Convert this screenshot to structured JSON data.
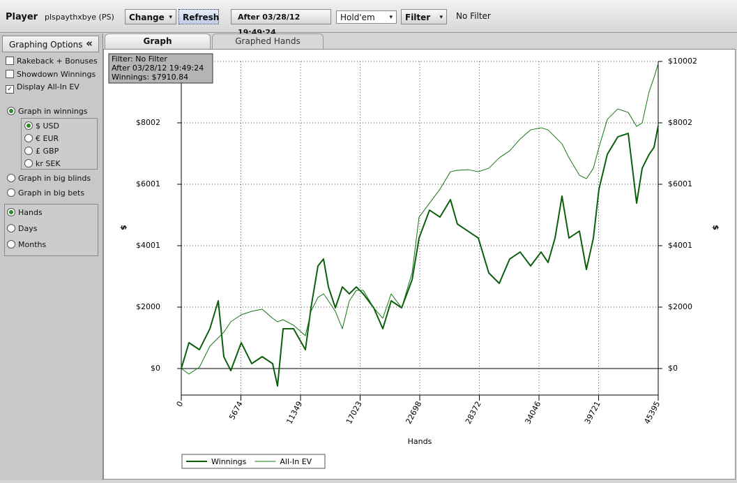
{
  "toolbar": {
    "player_label": "Player",
    "player": "plspaythxbye (PS)",
    "change": "Change",
    "refresh": "Refresh",
    "date_filter": "After 03/28/12 19:49:24",
    "game": "Hold'em",
    "filter": "Filter",
    "filter_status": "No Filter"
  },
  "sidebar": {
    "title": "Graphing Options",
    "collapse": "«",
    "checkboxes": [
      {
        "label": "Rakeback + Bonuses",
        "checked": false
      },
      {
        "label": "Showdown Winnings",
        "checked": false
      },
      {
        "label": "Display All-In EV",
        "checked": true
      }
    ],
    "units": [
      {
        "label": "Graph in winnings",
        "selected": true
      },
      {
        "label": "Graph in big blinds",
        "selected": false
      },
      {
        "label": "Graph in big bets",
        "selected": false
      }
    ],
    "currencies": [
      {
        "label": "$ USD",
        "selected": true
      },
      {
        "label": "€ EUR",
        "selected": false
      },
      {
        "label": "£ GBP",
        "selected": false
      },
      {
        "label": "kr SEK",
        "selected": false
      }
    ],
    "periods": [
      {
        "label": "Hands",
        "selected": true
      },
      {
        "label": "Days",
        "selected": false
      },
      {
        "label": "Months",
        "selected": false
      }
    ]
  },
  "tabs": [
    "Graph",
    "Graphed Hands"
  ],
  "chart_data": {
    "type": "line",
    "x_label": "Hands",
    "y_label": "$",
    "annotations": [
      "Filter: No Filter",
      "After 03/28/12 19:49:24",
      "Winnings: $7910.84"
    ],
    "x": [
      0,
      730,
      1726,
      2721,
      3518,
      4049,
      4712,
      5708,
      6703,
      7699,
      8694,
      9159,
      9690,
      10686,
      11814,
      12345,
      13009,
      13540,
      14004,
      14668,
      15331,
      15995,
      16659,
      17322,
      18318,
      19181,
      19977,
      20973,
      21968,
      22632,
      23628,
      24623,
      25619,
      26282,
      27278,
      28273,
      29269,
      30264,
      31260,
      32255,
      33251,
      34246,
      34910,
      35574,
      36237,
      36901,
      37896,
      38560,
      39224,
      39755,
      40551,
      41547,
      42542,
      43339,
      43870,
      44533,
      44998,
      45395
    ],
    "series": [
      {
        "name": "Winnings",
        "color": "#0b5e0b",
        "width": 2,
        "values": [
          0,
          841,
          614,
          1295,
          2205,
          386,
          -68,
          841,
          159,
          386,
          159,
          -568,
          1295,
          1295,
          614,
          1977,
          3341,
          3568,
          2659,
          1977,
          2659,
          2432,
          2659,
          2432,
          1977,
          1295,
          2205,
          1977,
          2886,
          4250,
          5159,
          4932,
          5500,
          4705,
          4477,
          4250,
          3114,
          2773,
          3568,
          3795,
          3341,
          3795,
          3455,
          4250,
          5614,
          4250,
          4477,
          3227,
          4250,
          5841,
          6977,
          7545,
          7659,
          5386,
          6523,
          6977,
          7205,
          7911
        ]
      },
      {
        "name": "All-In EV",
        "color": "#147514",
        "width": 1,
        "values": [
          0,
          -182,
          45,
          727,
          1000,
          1182,
          1523,
          1750,
          1864,
          1932,
          1636,
          1523,
          1591,
          1409,
          1068,
          1864,
          2318,
          2432,
          2205,
          1864,
          1295,
          2205,
          2545,
          2545,
          1977,
          1636,
          2432,
          1977,
          3114,
          4932,
          5386,
          5841,
          6409,
          6455,
          6477,
          6409,
          6523,
          6864,
          7091,
          7477,
          7773,
          7841,
          7773,
          7545,
          7318,
          6864,
          6295,
          6182,
          6523,
          7205,
          8114,
          8455,
          8341,
          7886,
          8000,
          9023,
          9477,
          9932
        ]
      }
    ],
    "xlim": [
      0,
      45395
    ],
    "xticks": [
      0,
      5674,
      11349,
      17023,
      22698,
      28372,
      34046,
      39721,
      45395
    ],
    "ylim": [
      -864,
      10002
    ],
    "yticks": [
      {
        "value": 0,
        "label": "$0"
      },
      {
        "value": 2000,
        "label": "$2000"
      },
      {
        "value": 4001,
        "label": "$4001"
      },
      {
        "value": 6001,
        "label": "$6001"
      },
      {
        "value": 8002,
        "label": "$8002"
      },
      {
        "value": 10002,
        "label": "$10002"
      }
    ],
    "grid": true,
    "legend": "bottom-left"
  }
}
